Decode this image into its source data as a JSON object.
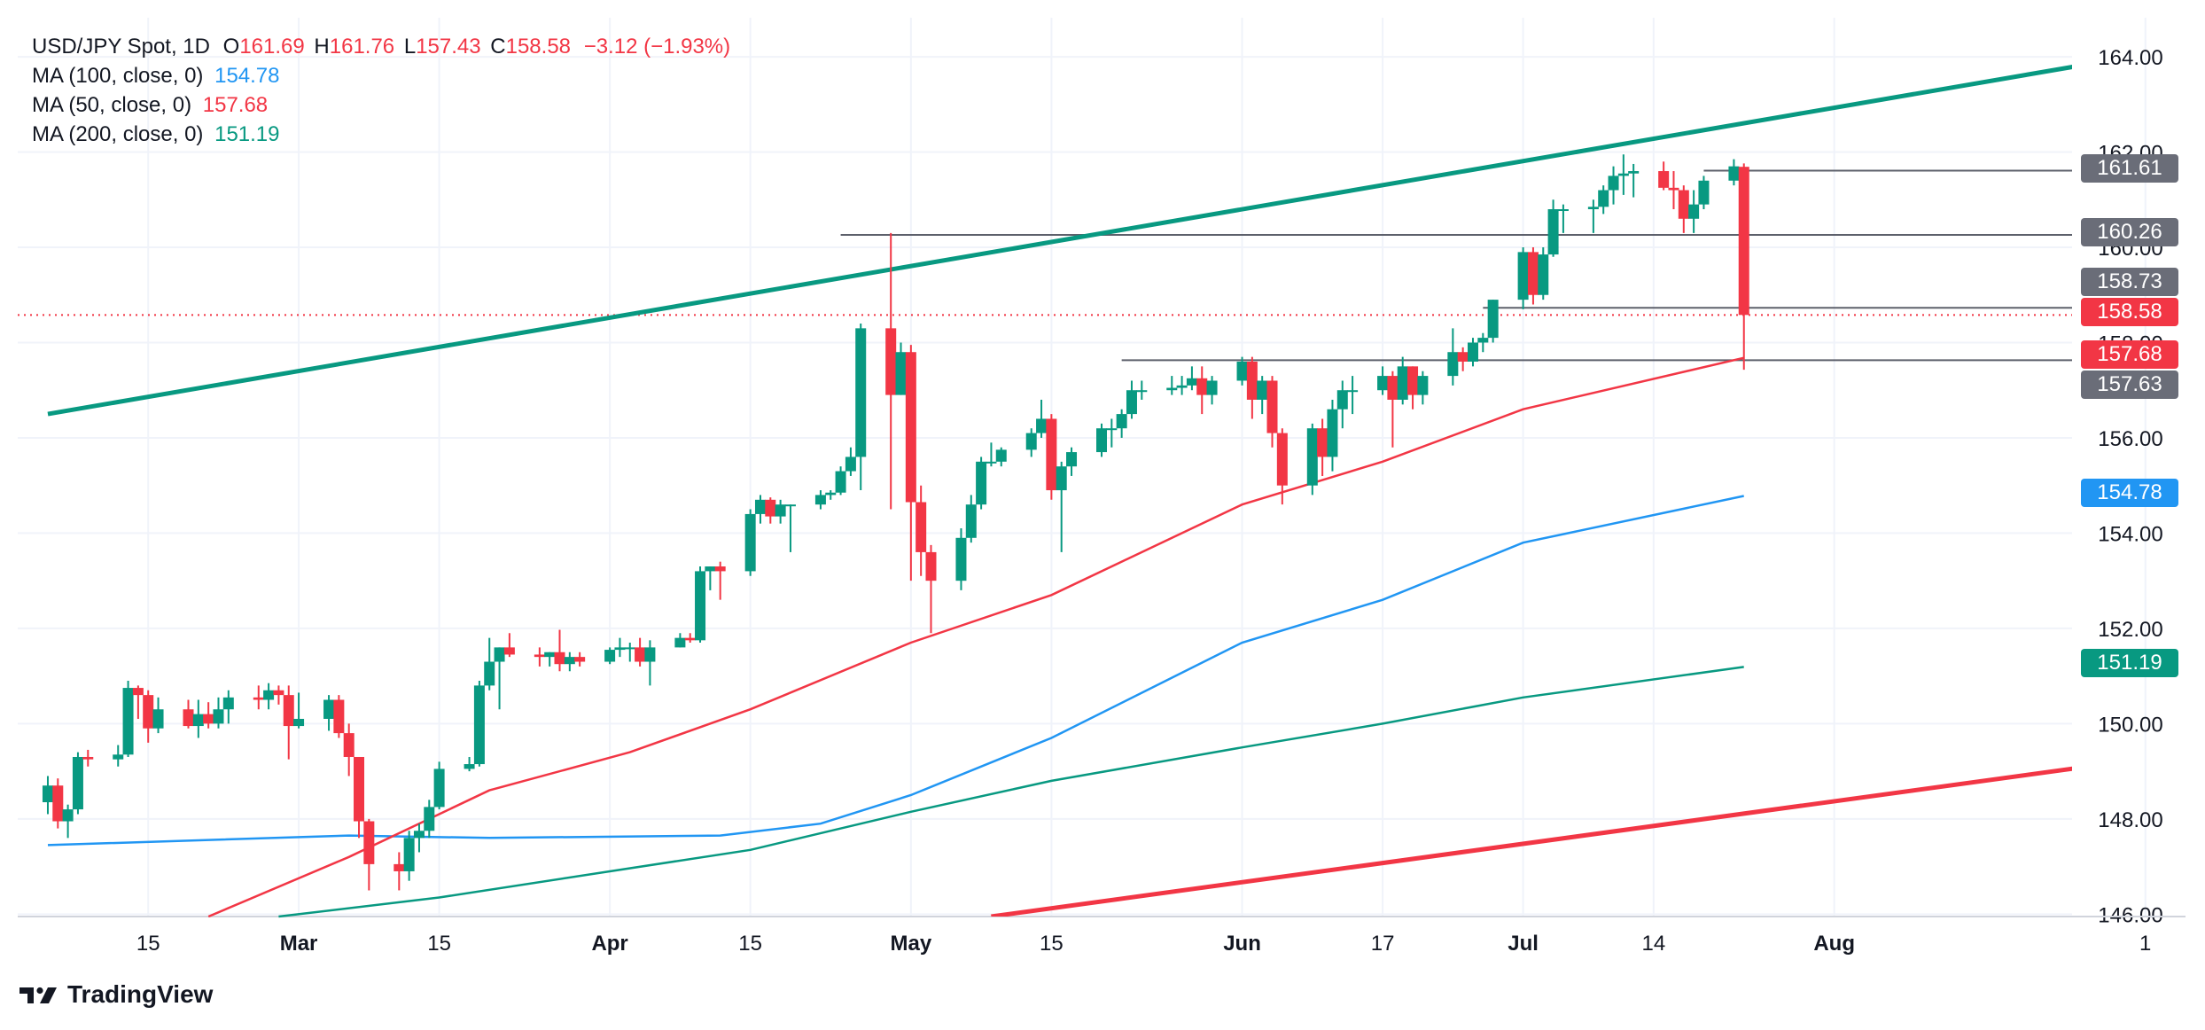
{
  "legend": {
    "symbol": "USD/JPY Spot, 1D",
    "o_label": "O",
    "o_value": "161.69",
    "h_label": "H",
    "h_value": "161.76",
    "l_label": "L",
    "l_value": "157.43",
    "c_label": "C",
    "c_value": "158.58",
    "change": "−3.12 (−1.93%)",
    "ma100_label": "MA (100, close, 0)",
    "ma100_value": "154.78",
    "ma50_label": "MA (50, close, 0)",
    "ma50_value": "157.68",
    "ma200_label": "MA (200, close, 0)",
    "ma200_value": "151.19"
  },
  "colors": {
    "up": "#089981",
    "down": "#f23645",
    "ma100": "#2196f3",
    "ma50": "#f23645",
    "ma200": "#089981",
    "trend_upper": "#089981",
    "trend_lower": "#f23645",
    "level": "#5d606b",
    "tag_gray": "#6a6d78",
    "grid": "#f0f3fa",
    "text": "#131722"
  },
  "price_tags": [
    {
      "label": "161.61",
      "color": "gray"
    },
    {
      "label": "160.26",
      "color": "gray"
    },
    {
      "label": "158.73",
      "color": "gray"
    },
    {
      "label": "158.58",
      "color": "red"
    },
    {
      "label": "157.68",
      "color": "red"
    },
    {
      "label": "157.63",
      "color": "gray"
    },
    {
      "label": "154.78",
      "color": "blue"
    },
    {
      "label": "151.19",
      "color": "green"
    }
  ],
  "brand": {
    "name": "TradingView"
  },
  "chart_data": {
    "type": "candlestick",
    "title": "USD/JPY Spot, 1D",
    "y_ticks": [
      "164.00",
      "162.00",
      "160.00",
      "158.00",
      "156.00",
      "154.00",
      "152.00",
      "150.00",
      "148.00",
      "146.00"
    ],
    "ylim": [
      145.95,
      164.82
    ],
    "x_ticks": [
      {
        "label": "15",
        "date": "2024-02-15"
      },
      {
        "label": "Mar",
        "date": "2024-03-01"
      },
      {
        "label": "15",
        "date": "2024-03-15"
      },
      {
        "label": "Apr",
        "date": "2024-04-01"
      },
      {
        "label": "15",
        "date": "2024-04-15"
      },
      {
        "label": "May",
        "date": "2024-05-01"
      },
      {
        "label": "15",
        "date": "2024-05-15"
      },
      {
        "label": "Jun",
        "date": "2024-06-03"
      },
      {
        "label": "17",
        "date": "2024-06-17"
      },
      {
        "label": "Jul",
        "date": "2024-07-01"
      },
      {
        "label": "14",
        "date": "2024-07-14"
      },
      {
        "label": "Aug",
        "date": "2024-08-01"
      },
      {
        "label": "1",
        "date": "2024-09-01"
      }
    ],
    "candles": [
      [
        "2024-02-05",
        148.35,
        148.9,
        148.1,
        148.7
      ],
      [
        "2024-02-06",
        148.7,
        148.85,
        147.8,
        147.95
      ],
      [
        "2024-02-07",
        147.95,
        148.3,
        147.6,
        148.2
      ],
      [
        "2024-02-08",
        148.2,
        149.4,
        148.1,
        149.3
      ],
      [
        "2024-02-09",
        149.3,
        149.45,
        149.1,
        149.25
      ],
      [
        "2024-02-12",
        149.25,
        149.55,
        149.1,
        149.35
      ],
      [
        "2024-02-13",
        149.35,
        150.9,
        149.3,
        150.75
      ],
      [
        "2024-02-14",
        150.75,
        150.8,
        150.1,
        150.6
      ],
      [
        "2024-02-15",
        150.6,
        150.7,
        149.6,
        149.9
      ],
      [
        "2024-02-16",
        149.9,
        150.55,
        149.8,
        150.3
      ],
      [
        "2024-02-19",
        150.3,
        150.5,
        149.9,
        149.95
      ],
      [
        "2024-02-20",
        149.95,
        150.5,
        149.7,
        150.2
      ],
      [
        "2024-02-21",
        150.2,
        150.45,
        149.9,
        150.0
      ],
      [
        "2024-02-22",
        150.0,
        150.55,
        149.9,
        150.3
      ],
      [
        "2024-02-23",
        150.3,
        150.7,
        150.0,
        150.55
      ],
      [
        "2024-02-26",
        150.55,
        150.8,
        150.3,
        150.5
      ],
      [
        "2024-02-27",
        150.5,
        150.85,
        150.3,
        150.7
      ],
      [
        "2024-02-28",
        150.7,
        150.8,
        150.4,
        150.6
      ],
      [
        "2024-02-29",
        150.6,
        150.8,
        149.25,
        149.95
      ],
      [
        "2024-03-01",
        149.95,
        150.65,
        149.9,
        150.1
      ],
      [
        "2024-03-04",
        150.1,
        150.6,
        149.85,
        150.5
      ],
      [
        "2024-03-05",
        150.5,
        150.6,
        149.7,
        149.8
      ],
      [
        "2024-03-06",
        149.8,
        150.0,
        148.9,
        149.3
      ],
      [
        "2024-03-07",
        149.3,
        149.3,
        147.6,
        147.95
      ],
      [
        "2024-03-08",
        147.95,
        148.0,
        146.5,
        147.05
      ],
      [
        "2024-03-11",
        147.05,
        147.3,
        146.5,
        146.9
      ],
      [
        "2024-03-12",
        146.9,
        147.75,
        146.7,
        147.6
      ],
      [
        "2024-03-13",
        147.6,
        147.9,
        147.3,
        147.75
      ],
      [
        "2024-03-14",
        147.75,
        148.4,
        147.6,
        148.25
      ],
      [
        "2024-03-15",
        148.25,
        149.2,
        148.2,
        149.05
      ],
      [
        "2024-03-18",
        149.05,
        149.3,
        149.0,
        149.15
      ],
      [
        "2024-03-19",
        149.15,
        150.9,
        149.1,
        150.8
      ],
      [
        "2024-03-20",
        150.8,
        151.8,
        150.7,
        151.3
      ],
      [
        "2024-03-21",
        151.3,
        151.6,
        150.3,
        151.6
      ],
      [
        "2024-03-22",
        151.6,
        151.9,
        151.4,
        151.45
      ],
      [
        "2024-03-25",
        151.45,
        151.6,
        151.2,
        151.4
      ],
      [
        "2024-03-26",
        151.4,
        151.5,
        151.2,
        151.5
      ],
      [
        "2024-03-27",
        151.5,
        151.97,
        151.1,
        151.25
      ],
      [
        "2024-03-28",
        151.25,
        151.5,
        151.1,
        151.4
      ],
      [
        "2024-03-29",
        151.4,
        151.5,
        151.2,
        151.3
      ],
      [
        "2024-04-01",
        151.3,
        151.6,
        151.25,
        151.55
      ],
      [
        "2024-04-02",
        151.55,
        151.8,
        151.4,
        151.6
      ],
      [
        "2024-04-03",
        151.6,
        151.7,
        151.3,
        151.6
      ],
      [
        "2024-04-04",
        151.6,
        151.8,
        151.2,
        151.3
      ],
      [
        "2024-04-05",
        151.3,
        151.75,
        150.8,
        151.6
      ],
      [
        "2024-04-08",
        151.6,
        151.9,
        151.6,
        151.8
      ],
      [
        "2024-04-09",
        151.8,
        151.9,
        151.7,
        151.75
      ],
      [
        "2024-04-10",
        151.75,
        153.3,
        151.7,
        153.2
      ],
      [
        "2024-04-11",
        153.2,
        153.3,
        152.8,
        153.3
      ],
      [
        "2024-04-12",
        153.3,
        153.4,
        152.6,
        153.2
      ],
      [
        "2024-04-15",
        153.2,
        154.5,
        153.1,
        154.4
      ],
      [
        "2024-04-16",
        154.4,
        154.8,
        154.2,
        154.7
      ],
      [
        "2024-04-17",
        154.7,
        154.75,
        154.2,
        154.35
      ],
      [
        "2024-04-18",
        154.35,
        154.7,
        154.2,
        154.6
      ],
      [
        "2024-04-19",
        154.6,
        154.6,
        153.6,
        154.6
      ],
      [
        "2024-04-22",
        154.6,
        154.9,
        154.5,
        154.8
      ],
      [
        "2024-04-23",
        154.8,
        154.9,
        154.7,
        154.85
      ],
      [
        "2024-04-24",
        154.85,
        155.4,
        154.8,
        155.3
      ],
      [
        "2024-04-25",
        155.3,
        155.8,
        155.2,
        155.6
      ],
      [
        "2024-04-26",
        155.6,
        158.4,
        154.9,
        158.3
      ],
      [
        "2024-04-29",
        158.3,
        160.3,
        154.5,
        156.9
      ],
      [
        "2024-04-30",
        156.9,
        158.0,
        156.9,
        157.8
      ],
      [
        "2024-05-01",
        157.8,
        157.95,
        153.0,
        154.65
      ],
      [
        "2024-05-02",
        154.65,
        155.0,
        153.1,
        153.6
      ],
      [
        "2024-05-03",
        153.6,
        153.75,
        151.9,
        153.0
      ],
      [
        "2024-05-06",
        153.0,
        154.1,
        152.8,
        153.9
      ],
      [
        "2024-05-07",
        153.9,
        154.8,
        153.8,
        154.6
      ],
      [
        "2024-05-08",
        154.6,
        155.6,
        154.5,
        155.5
      ],
      [
        "2024-05-09",
        155.5,
        155.9,
        155.4,
        155.5
      ],
      [
        "2024-05-10",
        155.5,
        155.8,
        155.4,
        155.75
      ],
      [
        "2024-05-13",
        155.75,
        156.2,
        155.6,
        156.1
      ],
      [
        "2024-05-14",
        156.1,
        156.8,
        156.0,
        156.4
      ],
      [
        "2024-05-15",
        156.4,
        156.5,
        154.7,
        154.9
      ],
      [
        "2024-05-16",
        154.9,
        155.5,
        153.6,
        155.4
      ],
      [
        "2024-05-17",
        155.4,
        155.8,
        155.2,
        155.7
      ],
      [
        "2024-05-20",
        155.7,
        156.3,
        155.6,
        156.2
      ],
      [
        "2024-05-21",
        156.2,
        156.4,
        155.8,
        156.2
      ],
      [
        "2024-05-22",
        156.2,
        156.6,
        156.0,
        156.5
      ],
      [
        "2024-05-23",
        156.5,
        157.2,
        156.4,
        157.0
      ],
      [
        "2024-05-24",
        157.0,
        157.2,
        156.8,
        157.0
      ],
      [
        "2024-05-27",
        157.0,
        157.3,
        156.9,
        157.05
      ],
      [
        "2024-05-28",
        157.05,
        157.3,
        156.9,
        157.1
      ],
      [
        "2024-05-29",
        157.1,
        157.5,
        157.0,
        157.25
      ],
      [
        "2024-05-30",
        157.25,
        157.5,
        156.5,
        156.9
      ],
      [
        "2024-05-31",
        156.9,
        157.3,
        156.7,
        157.2
      ],
      [
        "2024-06-03",
        157.2,
        157.7,
        157.1,
        157.6
      ],
      [
        "2024-06-04",
        157.6,
        157.7,
        156.4,
        156.8
      ],
      [
        "2024-06-05",
        156.8,
        157.3,
        156.5,
        157.2
      ],
      [
        "2024-06-06",
        157.2,
        157.3,
        155.8,
        156.1
      ],
      [
        "2024-06-07",
        156.1,
        156.2,
        154.6,
        155.0
      ],
      [
        "2024-06-10",
        155.0,
        156.3,
        154.8,
        156.2
      ],
      [
        "2024-06-11",
        156.2,
        156.4,
        155.2,
        155.6
      ],
      [
        "2024-06-12",
        155.6,
        156.8,
        155.3,
        156.6
      ],
      [
        "2024-06-13",
        156.6,
        157.2,
        156.2,
        157.0
      ],
      [
        "2024-06-14",
        157.0,
        157.3,
        156.5,
        157.0
      ],
      [
        "2024-06-17",
        157.0,
        157.5,
        156.9,
        157.3
      ],
      [
        "2024-06-18",
        157.3,
        157.4,
        155.8,
        156.8
      ],
      [
        "2024-06-19",
        156.8,
        157.7,
        156.7,
        157.5
      ],
      [
        "2024-06-20",
        157.5,
        157.5,
        156.6,
        156.9
      ],
      [
        "2024-06-21",
        156.9,
        157.4,
        156.7,
        157.3
      ],
      [
        "2024-06-24",
        157.3,
        158.3,
        157.1,
        157.8
      ],
      [
        "2024-06-25",
        157.8,
        157.9,
        157.4,
        157.6
      ],
      [
        "2024-06-26",
        157.6,
        158.1,
        157.5,
        158.0
      ],
      [
        "2024-06-27",
        158.0,
        158.2,
        157.8,
        158.1
      ],
      [
        "2024-06-28",
        158.1,
        158.9,
        158.0,
        158.9
      ],
      [
        "2024-07-01",
        158.9,
        160.0,
        158.7,
        159.9
      ],
      [
        "2024-07-02",
        159.9,
        160.0,
        158.8,
        159.0
      ],
      [
        "2024-07-03",
        159.0,
        160.0,
        158.9,
        159.85
      ],
      [
        "2024-07-04",
        159.85,
        161.0,
        159.8,
        160.8
      ],
      [
        "2024-07-05",
        160.8,
        160.9,
        160.3,
        160.8
      ],
      [
        "2024-07-08",
        160.8,
        161.0,
        160.3,
        160.85
      ],
      [
        "2024-07-09",
        160.85,
        161.3,
        160.7,
        161.2
      ],
      [
        "2024-07-10",
        161.2,
        161.7,
        160.9,
        161.5
      ],
      [
        "2024-07-11",
        161.5,
        161.95,
        161.1,
        161.55
      ],
      [
        "2024-07-12",
        161.55,
        161.75,
        161.05,
        161.6
      ],
      [
        "2024-07-15",
        161.6,
        161.8,
        161.2,
        161.25
      ],
      [
        "2024-07-16",
        161.25,
        161.6,
        160.8,
        161.2
      ],
      [
        "2024-07-17",
        161.2,
        161.3,
        160.3,
        160.6
      ],
      [
        "2024-07-18",
        160.6,
        161.2,
        160.3,
        160.9
      ],
      [
        "2024-07-19",
        160.9,
        161.5,
        160.8,
        161.4
      ],
      [
        "2024-07-22",
        161.4,
        161.85,
        161.3,
        161.7
      ],
      [
        "2024-07-23",
        161.69,
        161.76,
        157.43,
        158.58
      ]
    ],
    "series": [
      {
        "name": "MA (100, close, 0)",
        "color": "#2196f3",
        "points": [
          [
            "2024-02-05",
            147.45
          ],
          [
            "2024-03-06",
            147.65
          ],
          [
            "2024-03-20",
            147.6
          ],
          [
            "2024-04-12",
            147.65
          ],
          [
            "2024-04-22",
            147.9
          ],
          [
            "2024-05-01",
            148.5
          ],
          [
            "2024-05-15",
            149.7
          ],
          [
            "2024-06-03",
            151.7
          ],
          [
            "2024-06-17",
            152.6
          ],
          [
            "2024-07-01",
            153.8
          ],
          [
            "2024-07-23",
            154.78
          ]
        ]
      },
      {
        "name": "MA (50, close, 0)",
        "color": "#f23645",
        "points": [
          [
            "2024-02-21",
            145.95
          ],
          [
            "2024-03-06",
            147.2
          ],
          [
            "2024-03-20",
            148.6
          ],
          [
            "2024-04-03",
            149.4
          ],
          [
            "2024-04-15",
            150.3
          ],
          [
            "2024-05-01",
            151.7
          ],
          [
            "2024-05-15",
            152.7
          ],
          [
            "2024-06-03",
            154.6
          ],
          [
            "2024-06-17",
            155.5
          ],
          [
            "2024-07-01",
            156.6
          ],
          [
            "2024-07-23",
            157.68
          ]
        ]
      },
      {
        "name": "MA (200, close, 0)",
        "color": "#089981",
        "points": [
          [
            "2024-02-28",
            145.95
          ],
          [
            "2024-03-15",
            146.35
          ],
          [
            "2024-04-01",
            146.9
          ],
          [
            "2024-04-15",
            147.35
          ],
          [
            "2024-05-01",
            148.15
          ],
          [
            "2024-05-15",
            148.8
          ],
          [
            "2024-06-03",
            149.5
          ],
          [
            "2024-06-17",
            150.0
          ],
          [
            "2024-07-01",
            150.55
          ],
          [
            "2024-07-23",
            151.19
          ]
        ]
      }
    ],
    "trendlines": [
      {
        "color": "#089981",
        "from": [
          "2024-02-05",
          156.5
        ],
        "to": [
          "2024-09-01",
          164.05
        ]
      },
      {
        "color": "#f23645",
        "from": [
          "2024-05-09",
          145.95
        ],
        "to": [
          "2024-09-04",
          149.35
        ]
      }
    ],
    "levels": [
      {
        "value": 161.61,
        "from": "2024-07-19"
      },
      {
        "value": 160.26,
        "from": "2024-04-24"
      },
      {
        "value": 158.73,
        "from": "2024-06-27"
      },
      {
        "value": 157.63,
        "from": "2024-05-22"
      }
    ],
    "last_price_line": 158.58
  }
}
